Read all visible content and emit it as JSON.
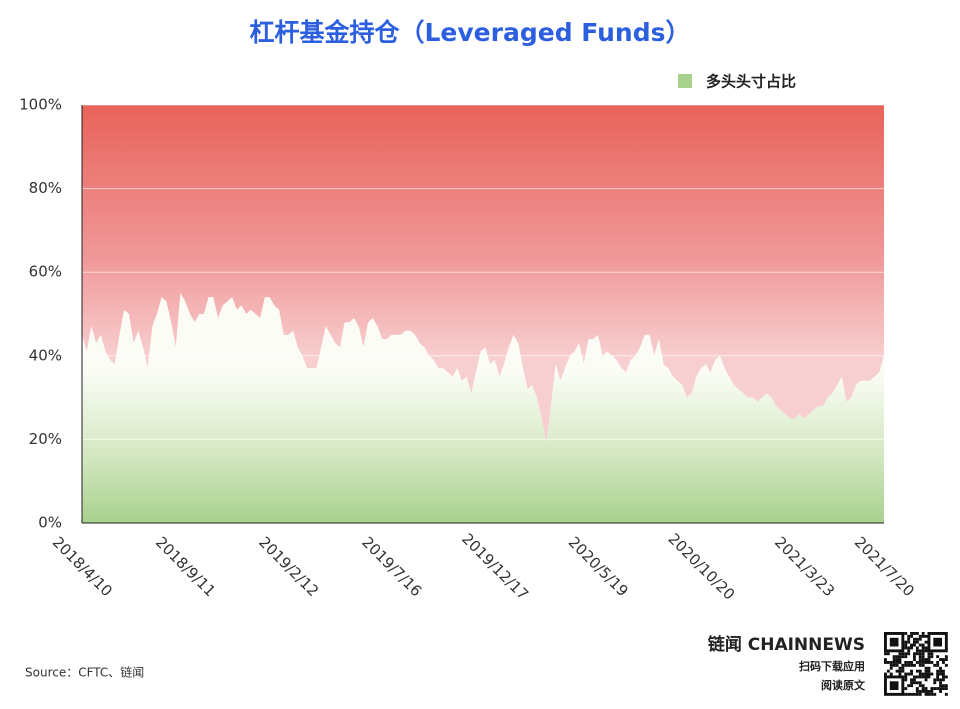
{
  "chart_data": {
    "type": "area",
    "title": "杠杆基金持仓（Leveraged Funds）",
    "legend_position": "top-right",
    "upper_color": "#e8635a",
    "categories": [
      "2018/4/10",
      null,
      null,
      null,
      null,
      null,
      null,
      null,
      null,
      null,
      null,
      null,
      null,
      null,
      null,
      null,
      null,
      null,
      null,
      null,
      null,
      null,
      "2018/9/11",
      null,
      null,
      null,
      null,
      null,
      null,
      null,
      null,
      null,
      null,
      null,
      null,
      null,
      null,
      null,
      null,
      null,
      null,
      null,
      null,
      null,
      "2019/2/12",
      null,
      null,
      null,
      null,
      null,
      null,
      null,
      null,
      null,
      null,
      null,
      null,
      null,
      null,
      null,
      null,
      null,
      null,
      null,
      null,
      null,
      "2019/7/16",
      null,
      null,
      null,
      null,
      null,
      null,
      null,
      null,
      null,
      null,
      null,
      null,
      null,
      null,
      null,
      null,
      null,
      null,
      null,
      null,
      null,
      "2019/12/17",
      null,
      null,
      null,
      null,
      null,
      null,
      null,
      null,
      null,
      null,
      null,
      null,
      null,
      null,
      null,
      null,
      null,
      null,
      null,
      null,
      null,
      "2020/5/19",
      null,
      null,
      null,
      null,
      null,
      null,
      null,
      null,
      null,
      null,
      null,
      null,
      null,
      null,
      null,
      null,
      null,
      null,
      null,
      null,
      null,
      "2020/10/20",
      null,
      null,
      null,
      null,
      null,
      null,
      null,
      null,
      null,
      null,
      null,
      null,
      null,
      null,
      null,
      null,
      null,
      null,
      null,
      null,
      null,
      "2021/3/23",
      null,
      null,
      null,
      null,
      null,
      null,
      null,
      null,
      null,
      null,
      null,
      null,
      null,
      null,
      null,
      null,
      "2021/7/20"
    ],
    "series": [
      {
        "name": "多头头寸占比",
        "color": "#a9d18e",
        "values": [
          45,
          41,
          47,
          43,
          45,
          41,
          39,
          38,
          45,
          51,
          50,
          43,
          46,
          42,
          37,
          47,
          50,
          54,
          53,
          48,
          42,
          55,
          53,
          50,
          48,
          50,
          50,
          54,
          54,
          49,
          52,
          53,
          54,
          51,
          52,
          50,
          51,
          50,
          49,
          54,
          54,
          52,
          51,
          45,
          45,
          46,
          42,
          40,
          37,
          37,
          37,
          42,
          47,
          45,
          43,
          42,
          48,
          48,
          49,
          47,
          42,
          48,
          49,
          47,
          44,
          44,
          45,
          45,
          45,
          46,
          46,
          45,
          43,
          42,
          40,
          39,
          37,
          37,
          36,
          35,
          37,
          34,
          35,
          31,
          36,
          41,
          42,
          38,
          39,
          35,
          38,
          42,
          45,
          43,
          37,
          32,
          33,
          30,
          25,
          19,
          28,
          38,
          34,
          37,
          40,
          41,
          43,
          38,
          44,
          44,
          45,
          40,
          41,
          40,
          39,
          37,
          36,
          39,
          40,
          42,
          45,
          45,
          40,
          44,
          38,
          37,
          35,
          34,
          33,
          30,
          31,
          35,
          37,
          38,
          36,
          39,
          40,
          37,
          35,
          33,
          32,
          31,
          30,
          30,
          29,
          30,
          31,
          30,
          28,
          27,
          26,
          25,
          25,
          26,
          25,
          26,
          27,
          28,
          28,
          30,
          31,
          33,
          35,
          29,
          30,
          33,
          34,
          34,
          34,
          35,
          36,
          40
        ]
      }
    ],
    "ylim": [
      0,
      100
    ],
    "yticks": [
      {
        "value": 0,
        "label": "0%"
      },
      {
        "value": 20,
        "label": "20%"
      },
      {
        "value": 40,
        "label": "40%"
      },
      {
        "value": 60,
        "label": "60%"
      },
      {
        "value": 80,
        "label": "80%"
      },
      {
        "value": 100,
        "label": "100%"
      }
    ],
    "grid": true
  },
  "source": "Source：CFTC、链闻",
  "brand": {
    "name": "链闻 CHAINNEWS",
    "line1": "扫码下载应用",
    "line2": "阅读原文"
  }
}
